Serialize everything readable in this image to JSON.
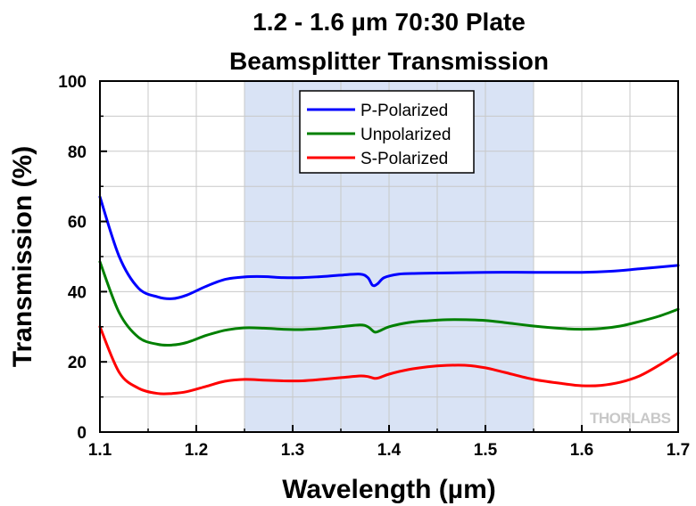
{
  "chart_data": {
    "type": "line",
    "title": [
      "1.2 - 1.6 µm 70:30 Plate",
      "Beamsplitter Transmission"
    ],
    "xlabel": "Wavelength (µm)",
    "ylabel": "Transmission (%)",
    "xlim": [
      1.1,
      1.7
    ],
    "ylim": [
      0,
      100
    ],
    "xticks": [
      "1.1",
      "1.2",
      "1.3",
      "1.4",
      "1.5",
      "1.6",
      "1.7"
    ],
    "xtick_values": [
      1.1,
      1.2,
      1.3,
      1.4,
      1.5,
      1.6,
      1.7
    ],
    "yticks": [
      "0",
      "20",
      "40",
      "60",
      "80",
      "100"
    ],
    "ytick_values": [
      0,
      20,
      40,
      60,
      80,
      100
    ],
    "grid": true,
    "legend_position": "top-center",
    "shaded_region": {
      "from": 1.25,
      "to": 1.55,
      "color": "#d9e3f5"
    },
    "watermark": "THORLABS",
    "series": [
      {
        "name": "P-Polarized",
        "color": "#0000ff",
        "x": [
          1.1,
          1.12,
          1.14,
          1.16,
          1.175,
          1.19,
          1.21,
          1.23,
          1.25,
          1.27,
          1.29,
          1.31,
          1.33,
          1.35,
          1.37,
          1.378,
          1.383,
          1.388,
          1.395,
          1.41,
          1.43,
          1.45,
          1.5,
          1.55,
          1.6,
          1.63,
          1.66,
          1.7
        ],
        "y": [
          67,
          50,
          41,
          38.5,
          38,
          39,
          41.5,
          43.5,
          44.2,
          44.3,
          44,
          44,
          44.3,
          44.7,
          45,
          44,
          41.8,
          42.2,
          44,
          45,
          45.2,
          45.3,
          45.5,
          45.5,
          45.5,
          45.8,
          46.5,
          47.5
        ]
      },
      {
        "name": "Unpolarized",
        "color": "#008000",
        "x": [
          1.1,
          1.12,
          1.14,
          1.16,
          1.175,
          1.19,
          1.21,
          1.23,
          1.25,
          1.27,
          1.29,
          1.31,
          1.33,
          1.35,
          1.37,
          1.378,
          1.385,
          1.39,
          1.4,
          1.42,
          1.44,
          1.46,
          1.48,
          1.5,
          1.52,
          1.55,
          1.58,
          1.6,
          1.62,
          1.64,
          1.66,
          1.68,
          1.7
        ],
        "y": [
          48.5,
          34,
          27,
          25,
          24.8,
          25.5,
          27.5,
          29,
          29.7,
          29.6,
          29.3,
          29.2,
          29.5,
          30,
          30.5,
          30,
          28.5,
          28.8,
          30,
          31.2,
          31.7,
          32,
          32,
          31.8,
          31.2,
          30.2,
          29.5,
          29.3,
          29.5,
          30.2,
          31.5,
          33,
          35
        ]
      },
      {
        "name": "S-Polarized",
        "color": "#ff0000",
        "x": [
          1.1,
          1.12,
          1.14,
          1.16,
          1.175,
          1.19,
          1.21,
          1.23,
          1.25,
          1.27,
          1.29,
          1.31,
          1.33,
          1.35,
          1.37,
          1.378,
          1.385,
          1.39,
          1.4,
          1.42,
          1.44,
          1.46,
          1.48,
          1.5,
          1.52,
          1.55,
          1.58,
          1.6,
          1.62,
          1.64,
          1.66,
          1.68,
          1.7
        ],
        "y": [
          30,
          17,
          12.5,
          11,
          11,
          11.5,
          13,
          14.5,
          15,
          14.8,
          14.6,
          14.6,
          15,
          15.5,
          16,
          15.8,
          15.3,
          15.5,
          16.5,
          17.8,
          18.6,
          19,
          19,
          18.3,
          17,
          15,
          13.8,
          13.2,
          13.3,
          14.2,
          16,
          19,
          22.5
        ]
      }
    ]
  }
}
